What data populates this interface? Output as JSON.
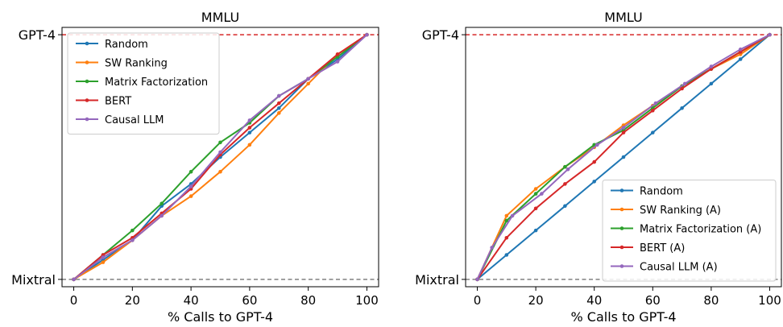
{
  "chart_data": [
    {
      "type": "line",
      "title": "MMLU",
      "xlabel": "% Calls to GPT-4",
      "ylabel": "",
      "xlim": [
        -4,
        104
      ],
      "ylim": [
        -0.03,
        1.03
      ],
      "xticks": [
        "0",
        "20",
        "40",
        "60",
        "80",
        "100"
      ],
      "xtick_values": [
        0,
        20,
        40,
        60,
        80,
        100
      ],
      "yticks": [
        "Mixtral",
        "GPT-4"
      ],
      "ytick_values": [
        0,
        1
      ],
      "reference_lines": [
        {
          "y": 1,
          "color": "#d62728",
          "style": "dashed"
        },
        {
          "y": 0,
          "color": "#808080",
          "style": "dashed"
        }
      ],
      "grid": false,
      "legend_position": "top-left",
      "series": [
        {
          "name": "Random",
          "color": "#1f77b4",
          "points": [
            [
              0,
              0
            ],
            [
              10,
              0.08
            ],
            [
              20,
              0.16
            ],
            [
              30,
              0.3
            ],
            [
              40,
              0.39
            ],
            [
              50,
              0.5
            ],
            [
              60,
              0.6
            ],
            [
              70,
              0.7
            ],
            [
              80,
              0.82
            ],
            [
              90,
              0.9
            ],
            [
              100,
              1.0
            ]
          ]
        },
        {
          "name": "SW Ranking",
          "color": "#ff7f0e",
          "points": [
            [
              0,
              0
            ],
            [
              10,
              0.07
            ],
            [
              20,
              0.16
            ],
            [
              30,
              0.26
            ],
            [
              40,
              0.34
            ],
            [
              50,
              0.44
            ],
            [
              60,
              0.55
            ],
            [
              70,
              0.68
            ],
            [
              80,
              0.8
            ],
            [
              90,
              0.92
            ],
            [
              100,
              1.0
            ]
          ]
        },
        {
          "name": "Matrix Factorization",
          "color": "#2ca02c",
          "points": [
            [
              0,
              0
            ],
            [
              10,
              0.1
            ],
            [
              20,
              0.2
            ],
            [
              30,
              0.31
            ],
            [
              40,
              0.44
            ],
            [
              50,
              0.56
            ],
            [
              60,
              0.64
            ],
            [
              70,
              0.75
            ],
            [
              80,
              0.82
            ],
            [
              90,
              0.91
            ],
            [
              100,
              1.0
            ]
          ]
        },
        {
          "name": "BERT",
          "color": "#d62728",
          "points": [
            [
              0,
              0
            ],
            [
              10,
              0.1
            ],
            [
              20,
              0.17
            ],
            [
              30,
              0.27
            ],
            [
              40,
              0.37
            ],
            [
              50,
              0.51
            ],
            [
              60,
              0.62
            ],
            [
              70,
              0.72
            ],
            [
              80,
              0.82
            ],
            [
              90,
              0.92
            ],
            [
              100,
              1.0
            ]
          ]
        },
        {
          "name": "Causal LLM",
          "color": "#9467bd",
          "points": [
            [
              0,
              0
            ],
            [
              10,
              0.09
            ],
            [
              20,
              0.16
            ],
            [
              30,
              0.26
            ],
            [
              40,
              0.38
            ],
            [
              50,
              0.52
            ],
            [
              60,
              0.65
            ],
            [
              70,
              0.75
            ],
            [
              80,
              0.82
            ],
            [
              90,
              0.89
            ],
            [
              100,
              1.0
            ]
          ]
        }
      ]
    },
    {
      "type": "line",
      "title": "MMLU",
      "xlabel": "% Calls to GPT-4",
      "ylabel": "",
      "xlim": [
        -4,
        104
      ],
      "ylim": [
        -0.03,
        1.03
      ],
      "xticks": [
        "0",
        "20",
        "40",
        "60",
        "80",
        "100"
      ],
      "xtick_values": [
        0,
        20,
        40,
        60,
        80,
        100
      ],
      "yticks": [
        "Mixtral",
        "GPT-4"
      ],
      "ytick_values": [
        0,
        1
      ],
      "reference_lines": [
        {
          "y": 1,
          "color": "#d62728",
          "style": "dashed"
        },
        {
          "y": 0,
          "color": "#808080",
          "style": "dashed"
        }
      ],
      "grid": false,
      "legend_position": "bottom-right",
      "series": [
        {
          "name": "Random",
          "color": "#1f77b4",
          "points": [
            [
              0,
              0
            ],
            [
              10,
              0.1
            ],
            [
              20,
              0.2
            ],
            [
              30,
              0.3
            ],
            [
              40,
              0.4
            ],
            [
              50,
              0.5
            ],
            [
              60,
              0.6
            ],
            [
              70,
              0.7
            ],
            [
              80,
              0.8
            ],
            [
              90,
              0.9
            ],
            [
              100,
              1.0
            ]
          ]
        },
        {
          "name": "SW Ranking (A)",
          "color": "#ff7f0e",
          "points": [
            [
              0,
              0
            ],
            [
              10,
              0.26
            ],
            [
              20,
              0.37
            ],
            [
              30,
              0.46
            ],
            [
              40,
              0.54
            ],
            [
              50,
              0.63
            ],
            [
              60,
              0.71
            ],
            [
              70,
              0.79
            ],
            [
              80,
              0.86
            ],
            [
              90,
              0.92
            ],
            [
              100,
              1.0
            ]
          ]
        },
        {
          "name": "Matrix Factorization (A)",
          "color": "#2ca02c",
          "points": [
            [
              0,
              0
            ],
            [
              10,
              0.24
            ],
            [
              20,
              0.35
            ],
            [
              30,
              0.46
            ],
            [
              40,
              0.55
            ],
            [
              50,
              0.61
            ],
            [
              60,
              0.7
            ],
            [
              70,
              0.79
            ],
            [
              80,
              0.86
            ],
            [
              90,
              0.93
            ],
            [
              100,
              1.0
            ]
          ]
        },
        {
          "name": "BERT (A)",
          "color": "#d62728",
          "points": [
            [
              0,
              0
            ],
            [
              10,
              0.17
            ],
            [
              20,
              0.29
            ],
            [
              30,
              0.39
            ],
            [
              40,
              0.48
            ],
            [
              50,
              0.6
            ],
            [
              60,
              0.69
            ],
            [
              70,
              0.78
            ],
            [
              80,
              0.86
            ],
            [
              90,
              0.93
            ],
            [
              100,
              1.0
            ]
          ]
        },
        {
          "name": "Causal LLM (A)",
          "color": "#9467bd",
          "points": [
            [
              0,
              0
            ],
            [
              5,
              0.13
            ],
            [
              12,
              0.26
            ],
            [
              22,
              0.35
            ],
            [
              31,
              0.45
            ],
            [
              41,
              0.55
            ],
            [
              50,
              0.62
            ],
            [
              61,
              0.72
            ],
            [
              71,
              0.8
            ],
            [
              80,
              0.87
            ],
            [
              90,
              0.94
            ],
            [
              100,
              1.0
            ]
          ]
        }
      ]
    }
  ]
}
